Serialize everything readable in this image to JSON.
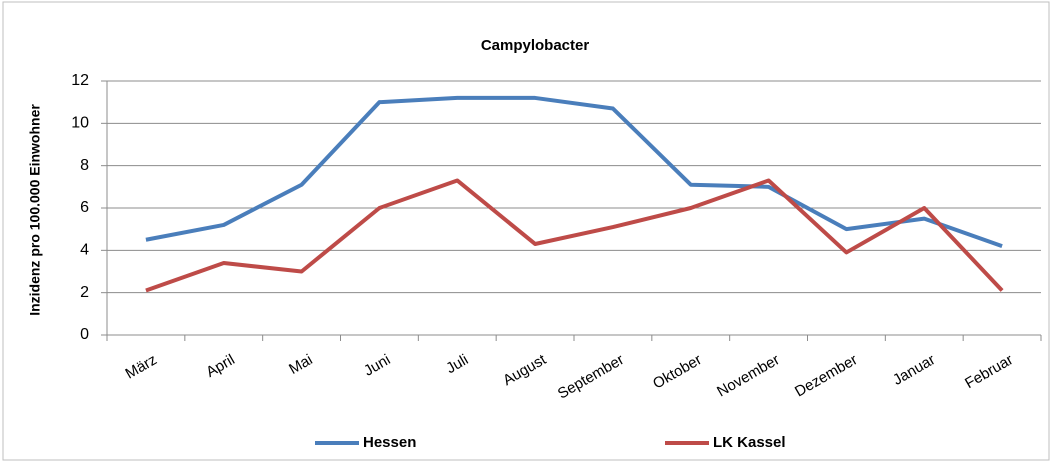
{
  "chart_data": {
    "type": "line",
    "title": "Campylobacter",
    "y_label": "Inzidenz pro 100.000 Einwohner",
    "categories": [
      "März",
      "April",
      "Mai",
      "Juni",
      "Juli",
      "August",
      "September",
      "Oktober",
      "November",
      "Dezember",
      "Januar",
      "Februar"
    ],
    "series": [
      {
        "name": "Hessen",
        "color": "#4a7ebb",
        "values": [
          4.5,
          5.2,
          7.1,
          11.0,
          11.2,
          11.2,
          10.7,
          7.1,
          7.0,
          5.0,
          5.5,
          4.2
        ]
      },
      {
        "name": "LK Kassel",
        "color": "#be4b48",
        "values": [
          2.1,
          3.4,
          3.0,
          6.0,
          7.3,
          4.3,
          5.1,
          6.0,
          7.3,
          3.9,
          6.0,
          2.1
        ]
      }
    ],
    "ylim": [
      0,
      12
    ],
    "yticks": [
      0,
      2,
      4,
      6,
      8,
      10,
      12
    ],
    "grid": true,
    "legend": "bottom"
  }
}
